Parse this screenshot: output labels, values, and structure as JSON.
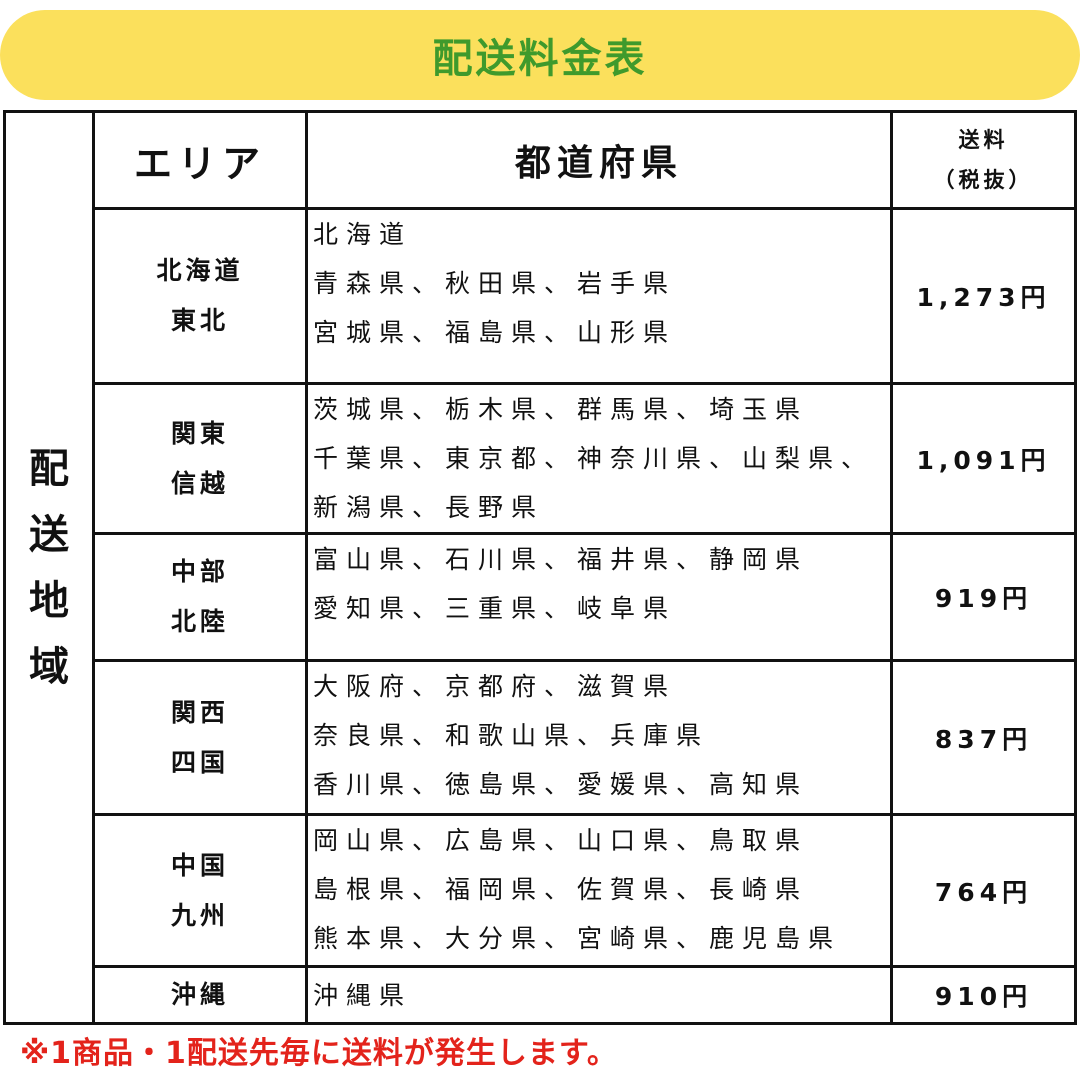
{
  "title": "配送料金表",
  "side_label": [
    "配",
    "送",
    "地",
    "域"
  ],
  "headers": {
    "area": "エリア",
    "prefecture": "都道府県",
    "price_line1": "送料",
    "price_line2": "（税抜）"
  },
  "rows": [
    {
      "area": [
        "北海道",
        "東北"
      ],
      "prefectures": [
        "北海道",
        "青森県、秋田県、岩手県",
        "宮城県、福島県、山形県"
      ],
      "price": "1,273円"
    },
    {
      "area": [
        "関東",
        "信越"
      ],
      "prefectures": [
        "茨城県、栃木県、群馬県、埼玉県",
        "千葉県、東京都、神奈川県、山梨県、",
        "新潟県、長野県"
      ],
      "price": "1,091円"
    },
    {
      "area": [
        "中部",
        "北陸"
      ],
      "prefectures": [
        "富山県、石川県、福井県、静岡県",
        "愛知県、三重県、岐阜県"
      ],
      "price": "919円"
    },
    {
      "area": [
        "関西",
        "四国"
      ],
      "prefectures": [
        "大阪府、京都府、滋賀県",
        "奈良県、和歌山県、兵庫県",
        "香川県、徳島県、愛媛県、高知県"
      ],
      "price": "837円"
    },
    {
      "area": [
        "中国",
        "九州"
      ],
      "prefectures": [
        "岡山県、広島県、山口県、鳥取県",
        "島根県、福岡県、佐賀県、長崎県",
        "熊本県、大分県、宮崎県、鹿児島県"
      ],
      "price": "764円"
    },
    {
      "area": [
        "沖縄"
      ],
      "prefectures": [
        "沖縄県"
      ],
      "price": "910円"
    }
  ],
  "note": "※1商品・1配送先毎に送料が発生します。",
  "colors": {
    "banner": "#fbe05c",
    "title": "#3f9a2c",
    "note": "#e3231b"
  }
}
